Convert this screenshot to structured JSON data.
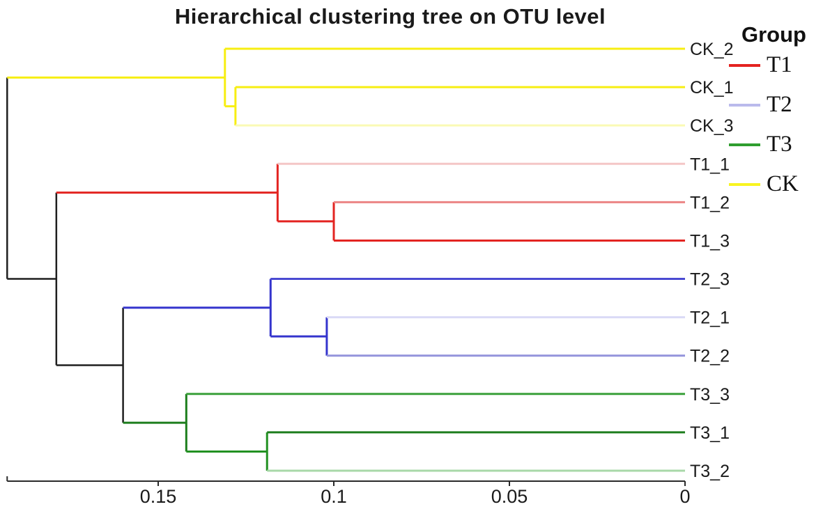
{
  "title": "Hierarchical clustering tree on OTU level",
  "legend": {
    "title": "Group",
    "items": [
      {
        "label": "T1",
        "color": "#e42320"
      },
      {
        "label": "T2",
        "color": "#babaec"
      },
      {
        "label": "T3",
        "color": "#2f9e2f"
      },
      {
        "label": "CK",
        "color": "#f8f420"
      }
    ]
  },
  "chart_data": {
    "type": "dendrogram",
    "title": "Hierarchical clustering tree on OTU level",
    "orientation": "horizontal; leaves on right; distance axis decreases left-to-right (0 at right)",
    "axis": {
      "position": "bottom",
      "range_left_to_right": [
        0.193,
        0
      ],
      "ticks": [
        {
          "value": 0.15,
          "label": "0.15"
        },
        {
          "value": 0.1,
          "label": "0.1"
        },
        {
          "value": 0.05,
          "label": "0.05"
        },
        {
          "value": 0,
          "label": "0"
        }
      ]
    },
    "leaves": [
      {
        "label": "CK_2",
        "group": "CK",
        "color": "#f7ee12"
      },
      {
        "label": "CK_1",
        "group": "CK",
        "color": "#f7ee12"
      },
      {
        "label": "CK_3",
        "group": "CK",
        "color": "#fafab4"
      },
      {
        "label": "T1_1",
        "group": "T1",
        "color": "#f4c6c6"
      },
      {
        "label": "T1_2",
        "group": "T1",
        "color": "#ec8484"
      },
      {
        "label": "T1_3",
        "group": "T1",
        "color": "#e32421"
      },
      {
        "label": "T2_3",
        "group": "T2",
        "color": "#4a4ad2"
      },
      {
        "label": "T2_1",
        "group": "T2",
        "color": "#dadaf6"
      },
      {
        "label": "T2_2",
        "group": "T2",
        "color": "#9494dc"
      },
      {
        "label": "T3_3",
        "group": "T3",
        "color": "#3aa03a"
      },
      {
        "label": "T3_1",
        "group": "T3",
        "color": "#1d7e1d"
      },
      {
        "label": "T3_2",
        "group": "T3",
        "color": "#a8d8a8"
      }
    ],
    "nodes": [
      {
        "id": "n_ck1_ck3",
        "children": [
          "CK_1",
          "CK_3"
        ],
        "height": 0.128,
        "color": "#f7ee12"
      },
      {
        "id": "n_ck",
        "children": [
          "CK_2",
          "n_ck1_ck3"
        ],
        "height": 0.131,
        "color": "#f7ee12"
      },
      {
        "id": "n_t12_t13",
        "children": [
          "T1_2",
          "T1_3"
        ],
        "height": 0.1,
        "color": "#e32421"
      },
      {
        "id": "n_t1",
        "children": [
          "T1_1",
          "n_t12_t13"
        ],
        "height": 0.116,
        "color": "#e32421"
      },
      {
        "id": "n_t21_t22",
        "children": [
          "T2_1",
          "T2_2"
        ],
        "height": 0.102,
        "color": "#3434cd"
      },
      {
        "id": "n_t2",
        "children": [
          "T2_3",
          "n_t21_t22"
        ],
        "height": 0.118,
        "color": "#3434cd"
      },
      {
        "id": "n_t31_t32",
        "children": [
          "T3_1",
          "T3_2"
        ],
        "height": 0.119,
        "color": "#229122"
      },
      {
        "id": "n_t3",
        "children": [
          "T3_3",
          "n_t31_t32"
        ],
        "height": 0.142,
        "color": "#1d7e1d"
      },
      {
        "id": "n_t2_t3",
        "children": [
          "n_t2",
          "n_t3"
        ],
        "height": 0.16,
        "color": "#1f1f1f"
      },
      {
        "id": "n_t1_t2t3",
        "children": [
          "n_t1",
          "n_t2_t3"
        ],
        "height": 0.179,
        "color": "#1f1f1f"
      },
      {
        "id": "root",
        "children": [
          "n_ck",
          "n_t1_t2t3"
        ],
        "height": 0.193,
        "color": "#1f1f1f"
      }
    ]
  }
}
